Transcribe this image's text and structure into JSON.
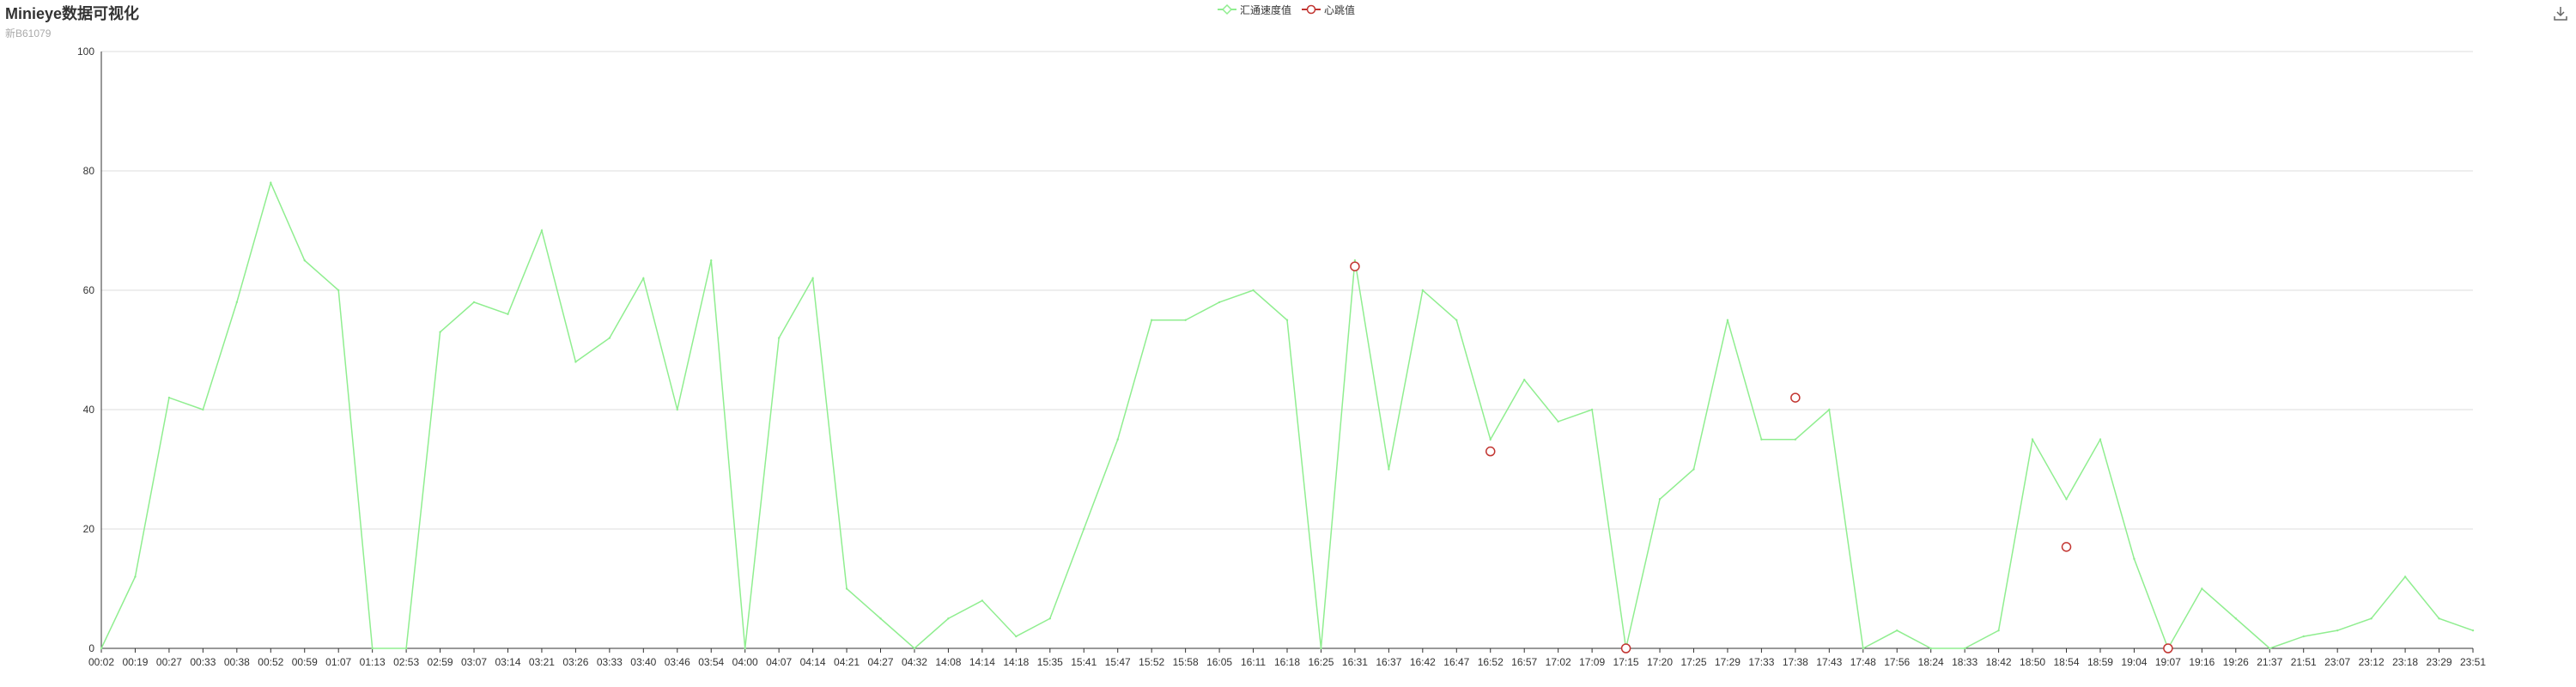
{
  "page": {
    "title": "Minieye数据可视化",
    "subtitle": "新B61079",
    "toolbox_icon": "download-icon"
  },
  "legend": [
    {
      "name": "汇通速度值",
      "color": "#90ee90",
      "symbol": "diamond"
    },
    {
      "name": "心跳值",
      "color": "#c23531",
      "symbol": "circle"
    }
  ],
  "chart_data": {
    "type": "line",
    "title": "Minieye数据可视化",
    "subtitle": "新B61079",
    "ylim": [
      0,
      100
    ],
    "yticks": [
      0,
      20,
      40,
      60,
      80,
      100
    ],
    "grid": true,
    "legend_position": "top-center",
    "categories": [
      "00:02",
      "00:19",
      "00:27",
      "00:33",
      "00:38",
      "00:52",
      "00:59",
      "01:07",
      "01:13",
      "02:53",
      "02:59",
      "03:07",
      "03:14",
      "03:21",
      "03:26",
      "03:33",
      "03:40",
      "03:46",
      "03:54",
      "04:00",
      "04:07",
      "04:14",
      "04:21",
      "04:27",
      "04:32",
      "14:08",
      "14:14",
      "14:18",
      "15:35",
      "15:41",
      "15:47",
      "15:52",
      "15:58",
      "16:05",
      "16:11",
      "16:18",
      "16:25",
      "16:31",
      "16:37",
      "16:42",
      "16:47",
      "16:52",
      "16:57",
      "17:02",
      "17:09",
      "17:15",
      "17:20",
      "17:25",
      "17:29",
      "17:33",
      "17:38",
      "17:43",
      "17:48",
      "17:56",
      "18:24",
      "18:33",
      "18:42",
      "18:50",
      "18:54",
      "18:59",
      "19:04",
      "19:07",
      "19:16",
      "19:26",
      "21:37",
      "21:51",
      "23:07",
      "23:12",
      "23:18",
      "23:29",
      "23:51"
    ],
    "series": [
      {
        "name": "汇通速度值",
        "color": "#90ee90",
        "values": [
          0,
          12,
          42,
          40,
          58,
          78,
          65,
          60,
          0,
          0,
          53,
          58,
          56,
          70,
          48,
          52,
          62,
          40,
          65,
          0,
          52,
          62,
          10,
          5,
          0,
          5,
          8,
          2,
          5,
          20,
          35,
          55,
          55,
          58,
          60,
          55,
          0,
          65,
          30,
          60,
          55,
          35,
          45,
          38,
          40,
          0,
          25,
          30,
          55,
          35,
          35,
          40,
          0,
          3,
          0,
          0,
          3,
          35,
          25,
          35,
          15,
          0,
          10,
          5,
          0,
          2,
          3,
          5,
          12,
          5,
          3
        ]
      },
      {
        "name": "心跳值",
        "color": "#c23531",
        "points": [
          {
            "x": "16:31",
            "y": 64
          },
          {
            "x": "16:52",
            "y": 33
          },
          {
            "x": "17:15",
            "y": 0
          },
          {
            "x": "17:38",
            "y": 42
          },
          {
            "x": "18:54",
            "y": 17
          },
          {
            "x": "19:07",
            "y": 0
          }
        ]
      }
    ]
  }
}
